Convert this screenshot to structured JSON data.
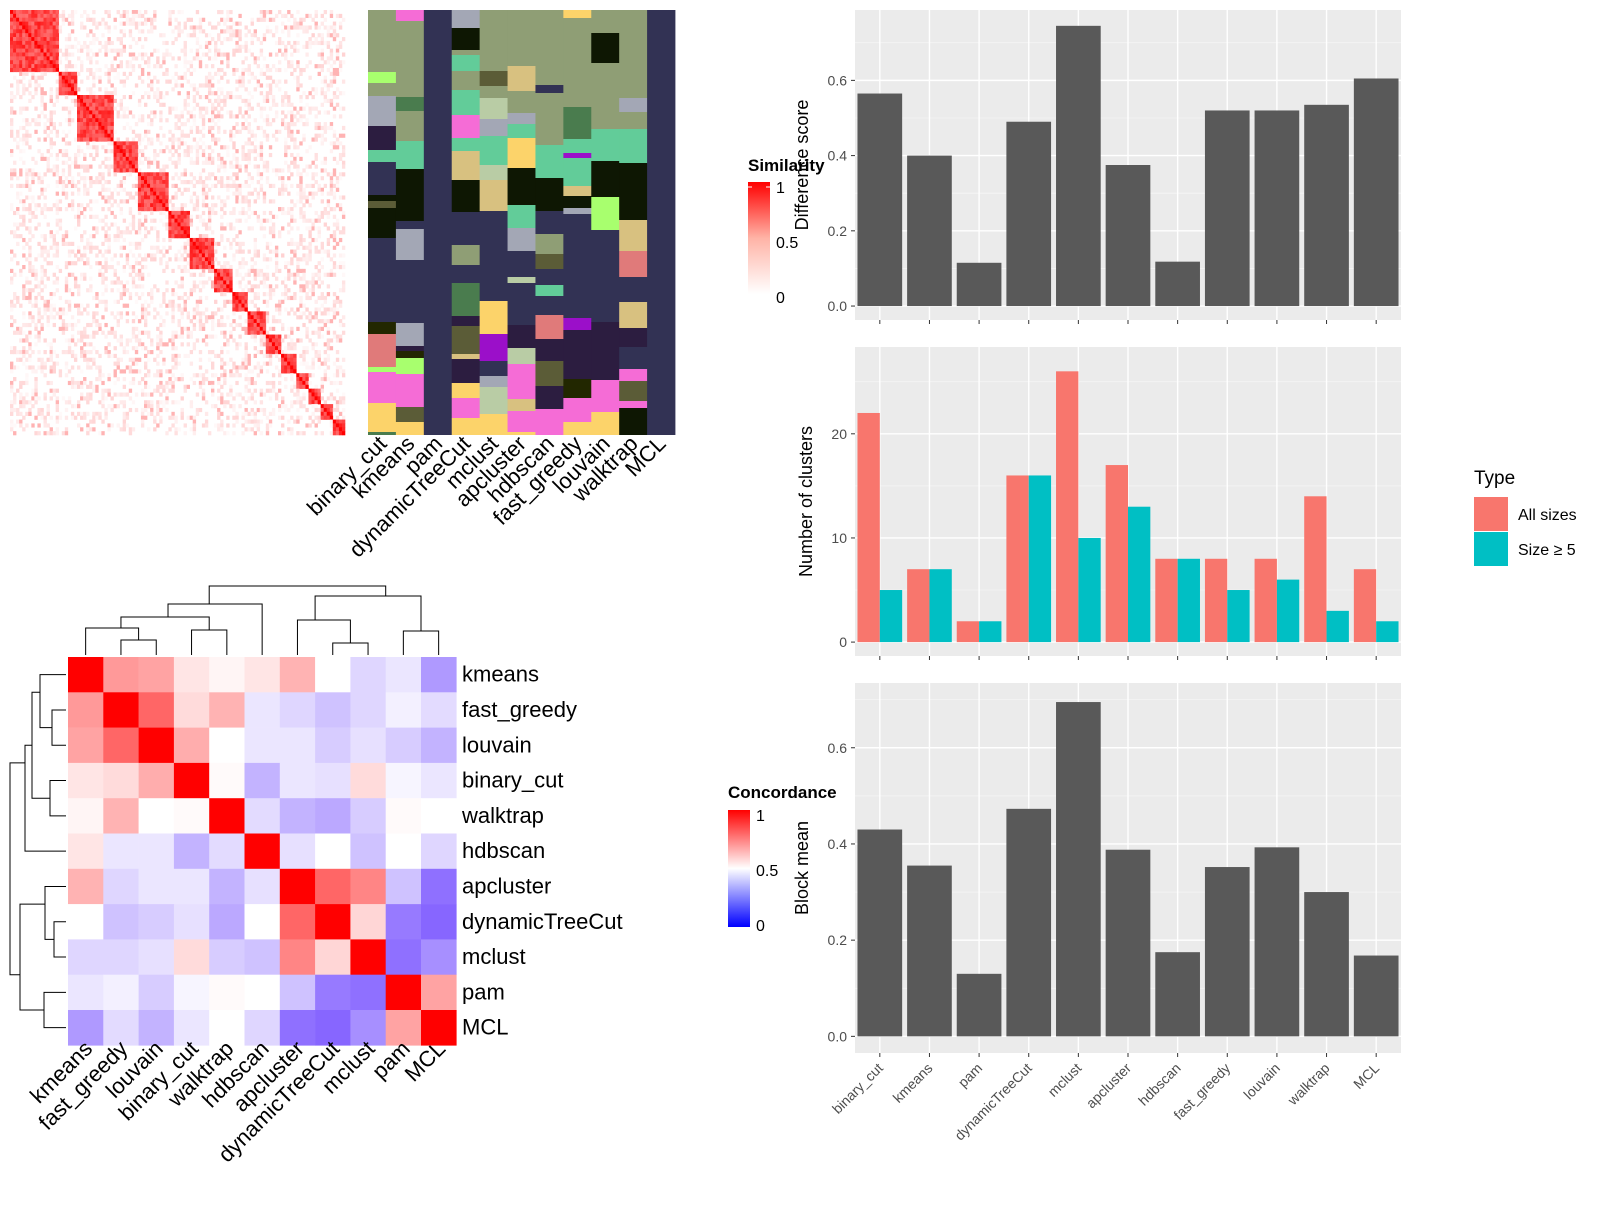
{
  "similarity": {
    "legend_title": "Similarity",
    "legend_ticks": [
      "1",
      "0.5",
      "0"
    ],
    "methods": [
      "binary_cut",
      "kmeans",
      "pam",
      "dynamicTreeCut",
      "mclust",
      "apcluster",
      "hdbscan",
      "fast_greedy",
      "louvain",
      "walktrap",
      "MCL"
    ]
  },
  "concordance": {
    "legend_title": "Concordance",
    "legend_ticks": [
      "1",
      "0.5",
      "0"
    ],
    "labels": [
      "kmeans",
      "fast_greedy",
      "louvain",
      "binary_cut",
      "walktrap",
      "hdbscan",
      "apcluster",
      "dynamicTreeCut",
      "mclust",
      "pam",
      "MCL"
    ],
    "matrix": [
      [
        1.0,
        0.7,
        0.68,
        0.55,
        0.52,
        0.55,
        0.65,
        0.5,
        0.42,
        0.45,
        0.3
      ],
      [
        0.7,
        1.0,
        0.8,
        0.57,
        0.65,
        0.45,
        0.42,
        0.38,
        0.42,
        0.47,
        0.43
      ],
      [
        0.68,
        0.8,
        1.0,
        0.66,
        0.5,
        0.45,
        0.45,
        0.4,
        0.44,
        0.4,
        0.35
      ],
      [
        0.55,
        0.57,
        0.66,
        1.0,
        0.51,
        0.35,
        0.45,
        0.44,
        0.57,
        0.48,
        0.45
      ],
      [
        0.52,
        0.65,
        0.5,
        0.51,
        1.0,
        0.43,
        0.35,
        0.33,
        0.4,
        0.51,
        0.5
      ],
      [
        0.55,
        0.45,
        0.45,
        0.35,
        0.43,
        1.0,
        0.44,
        0.5,
        0.38,
        0.5,
        0.42
      ],
      [
        0.65,
        0.42,
        0.45,
        0.45,
        0.35,
        0.44,
        1.0,
        0.8,
        0.74,
        0.38,
        0.22
      ],
      [
        0.5,
        0.38,
        0.4,
        0.44,
        0.33,
        0.5,
        0.8,
        1.0,
        0.58,
        0.24,
        0.2
      ],
      [
        0.42,
        0.42,
        0.44,
        0.57,
        0.4,
        0.38,
        0.74,
        0.58,
        1.0,
        0.22,
        0.28
      ],
      [
        0.45,
        0.47,
        0.4,
        0.48,
        0.51,
        0.5,
        0.38,
        0.24,
        0.22,
        1.0,
        0.68
      ],
      [
        0.3,
        0.43,
        0.35,
        0.45,
        0.5,
        0.42,
        0.22,
        0.2,
        0.28,
        0.68,
        1.0
      ]
    ]
  },
  "chart_data": [
    {
      "type": "bar",
      "categories": [
        "binary_cut",
        "kmeans",
        "pam",
        "dynamicTreeCut",
        "mclust",
        "apcluster",
        "hdbscan",
        "fast_greedy",
        "louvain",
        "walktrap",
        "MCL"
      ],
      "values": [
        0.565,
        0.4,
        0.115,
        0.49,
        0.745,
        0.375,
        0.118,
        0.52,
        0.52,
        0.535,
        0.605
      ],
      "ylabel": "Difference score",
      "ylim": [
        0,
        0.75
      ],
      "yticks": [
        "0.0",
        "0.2",
        "0.4",
        "0.6"
      ],
      "color": "#595959"
    },
    {
      "type": "bar",
      "categories": [
        "binary_cut",
        "kmeans",
        "pam",
        "dynamicTreeCut",
        "mclust",
        "apcluster",
        "hdbscan",
        "fast_greedy",
        "louvain",
        "walktrap",
        "MCL"
      ],
      "series": [
        {
          "name": "All sizes",
          "values": [
            22,
            7,
            2,
            16,
            26,
            17,
            8,
            8,
            8,
            14,
            7
          ],
          "color": "#F8766D"
        },
        {
          "name": "Size ≥ 5",
          "values": [
            5,
            7,
            2,
            16,
            10,
            13,
            8,
            5,
            6,
            3,
            2
          ],
          "color": "#00BFC4"
        }
      ],
      "ylabel": "Number of clusters",
      "ylim": [
        0,
        27
      ],
      "yticks": [
        "0",
        "10",
        "20"
      ],
      "legend_title": "Type"
    },
    {
      "type": "bar",
      "categories": [
        "binary_cut",
        "kmeans",
        "pam",
        "dynamicTreeCut",
        "mclust",
        "apcluster",
        "hdbscan",
        "fast_greedy",
        "louvain",
        "walktrap",
        "MCL"
      ],
      "values": [
        0.43,
        0.355,
        0.13,
        0.473,
        0.695,
        0.388,
        0.175,
        0.352,
        0.393,
        0.3,
        0.168
      ],
      "ylabel": "Block mean",
      "ylim": [
        0,
        0.7
      ],
      "yticks": [
        "0.0",
        "0.2",
        "0.4",
        "0.6"
      ],
      "color": "#595959"
    }
  ]
}
